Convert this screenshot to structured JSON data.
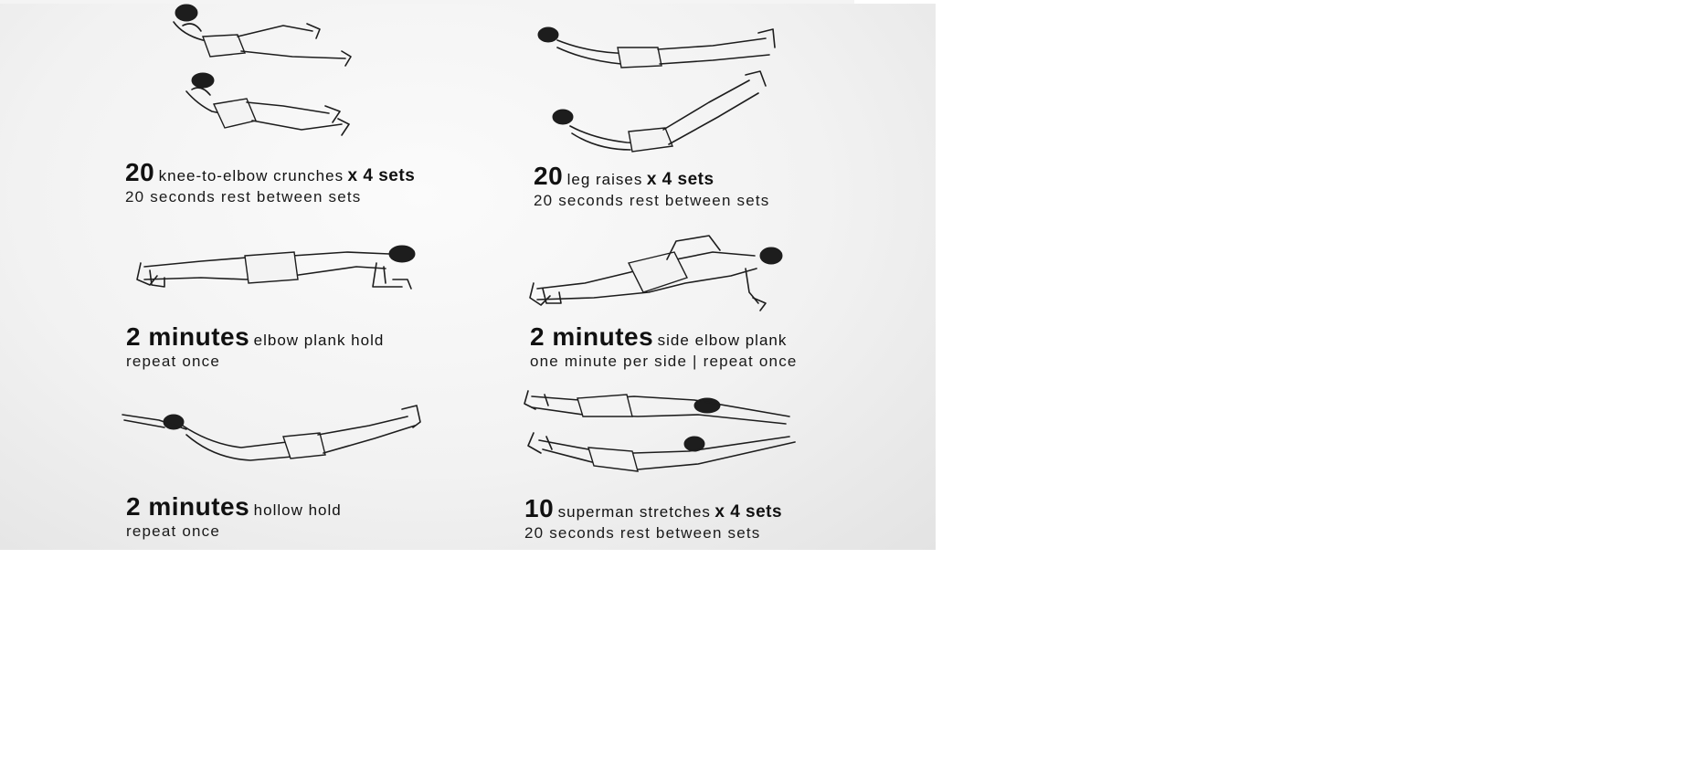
{
  "exercises": [
    {
      "id": "knee-to-elbow",
      "big": "20",
      "desc": "knee-to-elbow crunches",
      "tail": "x 4 sets",
      "note": "20 seconds rest between sets",
      "illustration_icon": "knee-to-elbow-crunch-illustration"
    },
    {
      "id": "leg-raises",
      "big": "20",
      "desc": "leg raises",
      "tail": "x 4 sets",
      "note": "20 seconds rest between sets",
      "illustration_icon": "leg-raise-illustration"
    },
    {
      "id": "elbow-plank",
      "big": "2 minutes",
      "desc": "elbow plank hold",
      "tail": "",
      "note": "repeat once",
      "illustration_icon": "elbow-plank-illustration"
    },
    {
      "id": "side-elbow-plank",
      "big": "2 minutes",
      "desc": "side elbow plank",
      "tail": "",
      "note": "one minute per side  |  repeat once",
      "illustration_icon": "side-elbow-plank-illustration"
    },
    {
      "id": "hollow-hold",
      "big": "2 minutes",
      "desc": "hollow hold",
      "tail": "",
      "note": "repeat once",
      "illustration_icon": "hollow-hold-illustration"
    },
    {
      "id": "superman",
      "big": "10",
      "desc": "superman stretches",
      "tail": "x 4 sets",
      "note": "20 seconds rest between sets",
      "illustration_icon": "superman-stretch-illustration"
    }
  ]
}
